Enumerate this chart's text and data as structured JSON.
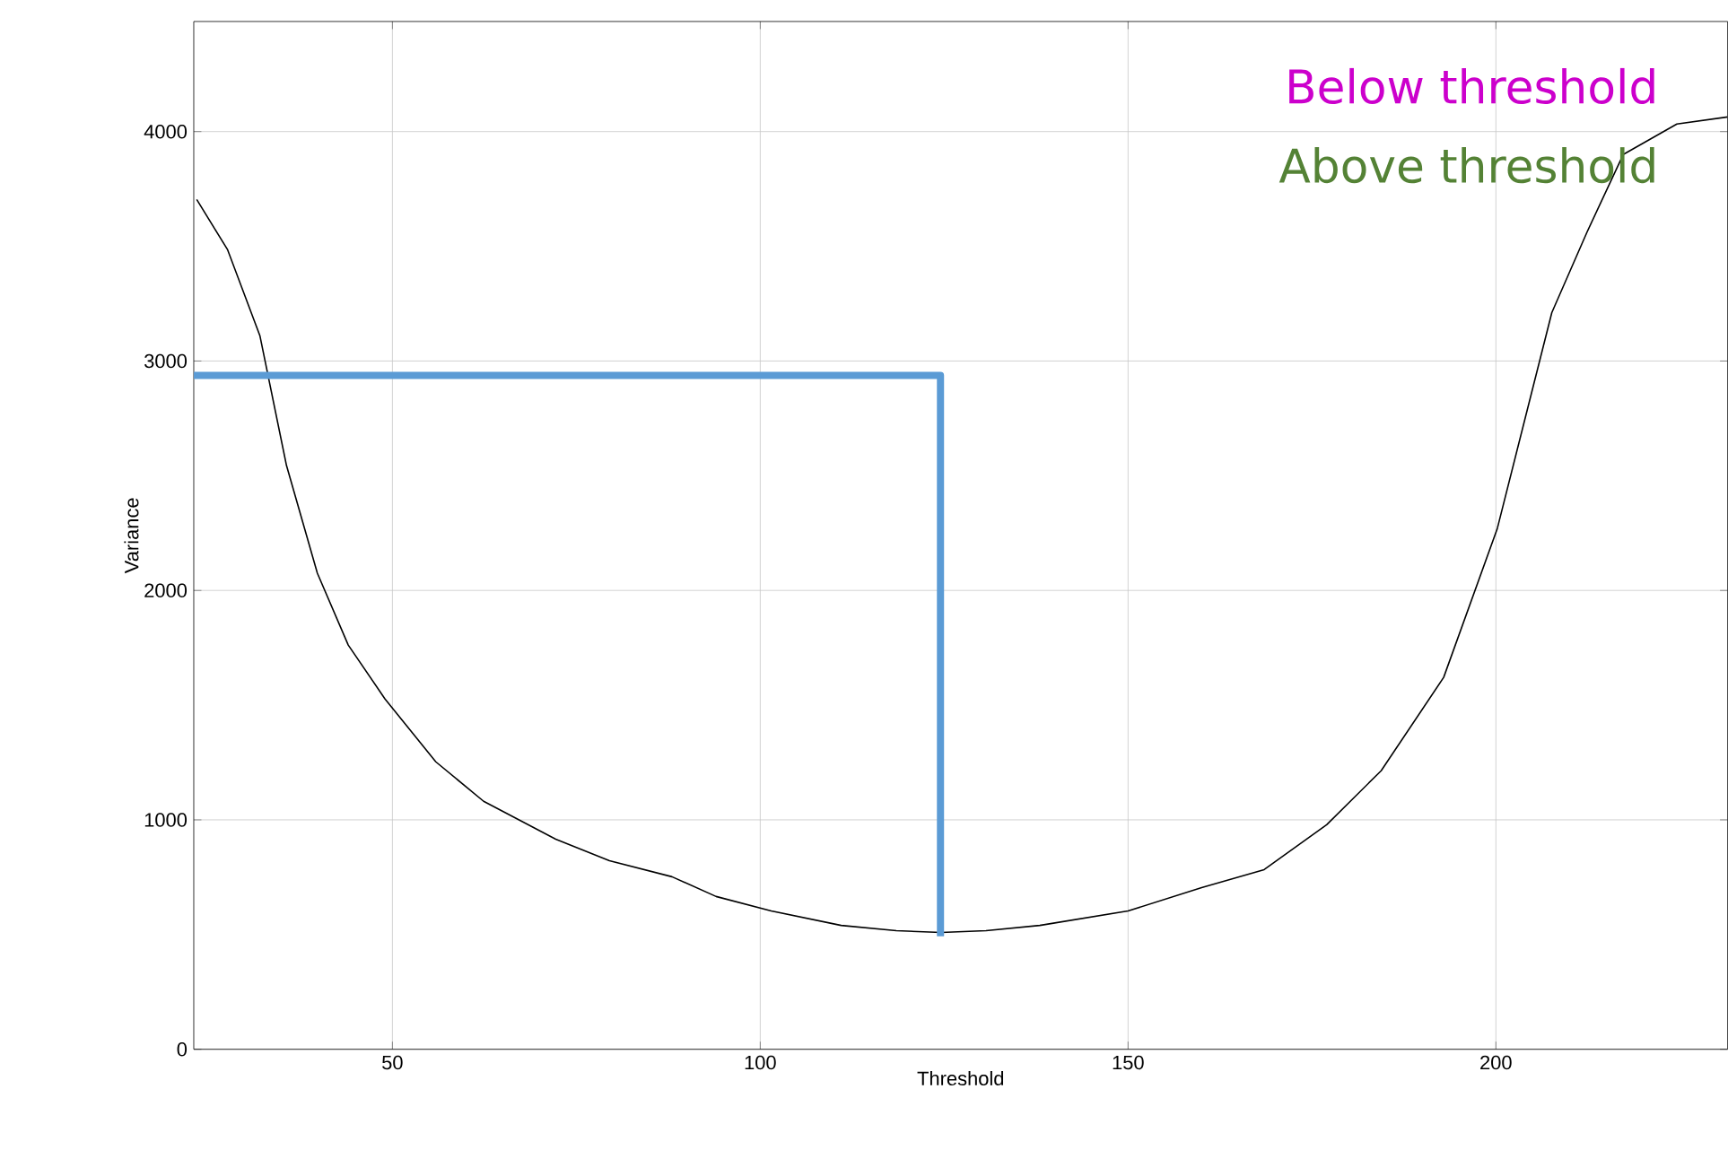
{
  "chart_data": {
    "type": "line",
    "xlabel": "Threshold",
    "ylabel": "Variance",
    "xlim": [
      23,
      231.5
    ],
    "ylim": [
      0,
      4480
    ],
    "xticks": [
      50,
      100,
      150,
      200
    ],
    "yticks": [
      0,
      1000,
      2000,
      3000,
      4000
    ],
    "grid": true,
    "series": [
      {
        "color": "#000000",
        "x": [
          23.4,
          27.6,
          32,
          35.6,
          39.8,
          44,
          49,
          55.9,
          62.4,
          72.2,
          79.5,
          88,
          94,
          101.5,
          111,
          118.5,
          124.6,
          130.7,
          138,
          150,
          160,
          168.5,
          177,
          184.4,
          192.9,
          200.2,
          207.6,
          212.4,
          217.3,
          224.6,
          231.5
        ],
        "values": [
          3704,
          3485,
          3109,
          2545,
          2075,
          1762,
          1527,
          1253,
          1081,
          916,
          822,
          752,
          666,
          603,
          540,
          517,
          509,
          517,
          540,
          603,
          705,
          783,
          979,
          1214,
          1621,
          2271,
          3211,
          3563,
          3900,
          4033,
          4064
        ]
      },
      {
        "color": "#5b9bd5",
        "x": [
          23,
          124.5,
          124.5
        ],
        "values": [
          2937,
          2937,
          493
        ]
      }
    ],
    "annotations": [
      "Below threshold",
      "Above threshold"
    ]
  }
}
